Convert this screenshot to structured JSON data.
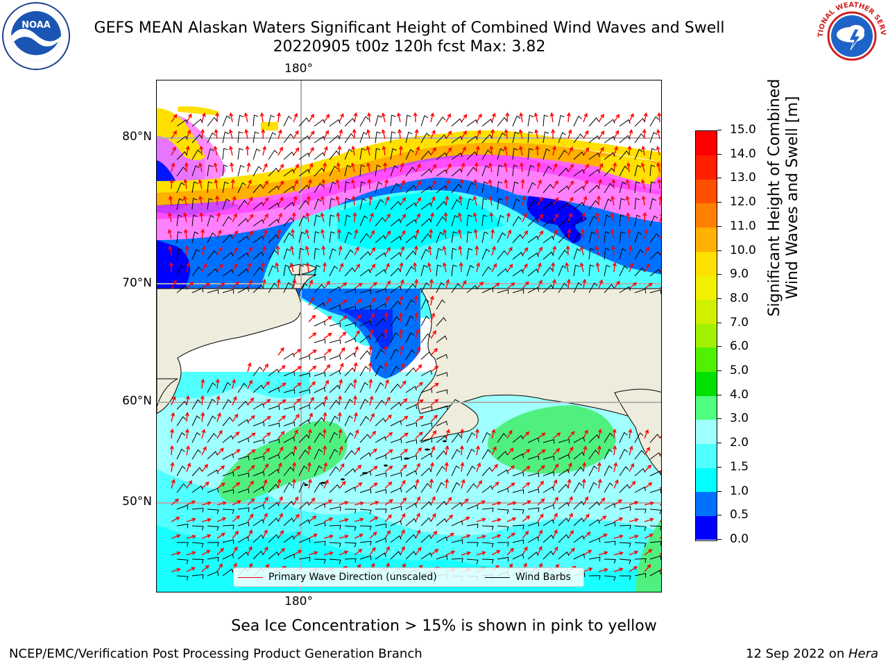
{
  "header": {
    "title": "GEFS MEAN Alaskan Waters Significant Height of Combined Wind Waves and Swell",
    "subtitle": "20220905 t00z 120h fcst   Max: 3.82"
  },
  "logos": {
    "left": {
      "icon": "noaa-logo-icon",
      "text": "NOAA"
    },
    "right": {
      "icon": "nws-logo-icon",
      "text": "NATIONAL WEATHER SERVICE"
    }
  },
  "map": {
    "lon_label_top": "180°",
    "lon_label_bottom": "180°",
    "lat_labels": [
      "80°N",
      "70°N",
      "60°N",
      "50°N"
    ],
    "colors": {
      "land": "#eeecdc",
      "coast": "#000000",
      "grid": "#b0b0b0",
      "wave_arrow": "#ff0000",
      "wind_barb": "#000000"
    }
  },
  "legend": {
    "wave_label": "Primary Wave Direction (unscaled)",
    "barb_label": "Wind Barbs"
  },
  "colorbar": {
    "label_line1": "Significant Height of Combined",
    "label_line2": "Wind Waves and Swell [m]",
    "ticks": [
      "15.0",
      "14.0",
      "13.0",
      "12.0",
      "11.0",
      "10.0",
      "9.0",
      "8.0",
      "7.0",
      "6.0",
      "5.0",
      "4.0",
      "3.0",
      "2.0",
      "1.5",
      "1.0",
      "0.5",
      "0.0"
    ],
    "colors": [
      "#0000ff",
      "#0070ff",
      "#00ffff",
      "#50ffff",
      "#a0ffff",
      "#50ff80",
      "#00e000",
      "#50f000",
      "#a0f000",
      "#d0f000",
      "#f0f000",
      "#ffe000",
      "#ffb000",
      "#ff8000",
      "#ff5000",
      "#ff2000",
      "#ff0000"
    ]
  },
  "footnote": "Sea Ice Concentration > 15% is shown in pink to yellow",
  "footer": {
    "left": "NCEP/EMC/Verification Post Processing Product Generation Branch",
    "right_date": "12 Sep 2022 on ",
    "right_host": "Hera"
  }
}
